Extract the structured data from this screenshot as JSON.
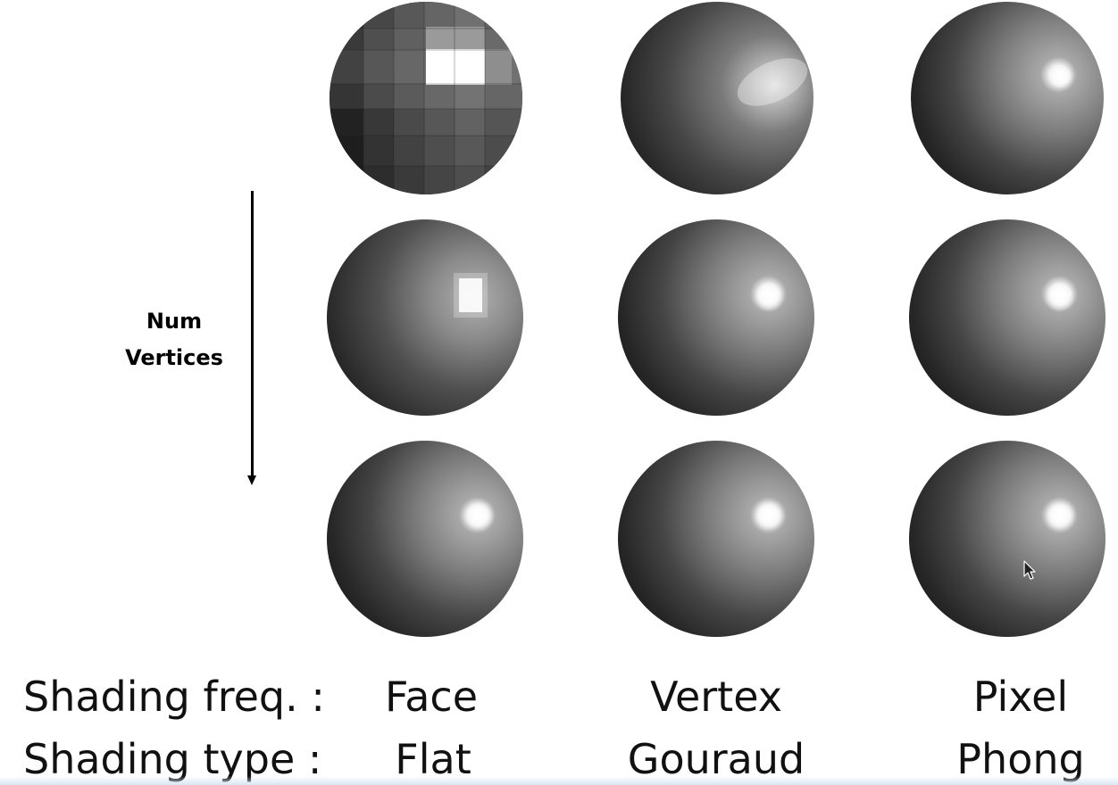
{
  "axis": {
    "label_line1": "Num",
    "label_line2": "Vertices"
  },
  "captions": {
    "freq_label": "Shading freq. :",
    "type_label": "Shading type :",
    "columns": [
      {
        "freq": "Face",
        "type": "Flat"
      },
      {
        "freq": "Vertex",
        "type": "Gouraud"
      },
      {
        "freq": "Pixel",
        "type": "Phong"
      }
    ]
  },
  "grid": {
    "rows": 3,
    "columns": [
      "flat",
      "gouraud",
      "phong"
    ]
  },
  "colors": {
    "sphere_dark": "#1c1c1c",
    "sphere_mid": "#6a6a6a",
    "highlight": "#ffffff"
  }
}
